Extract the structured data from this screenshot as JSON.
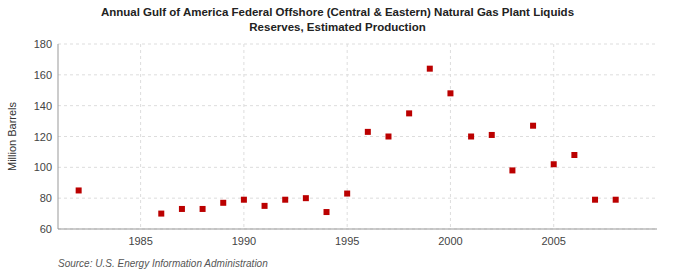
{
  "chart_data": {
    "type": "scatter",
    "title": "Annual Gulf of America Federal Offshore (Central & Eastern) Natural Gas Plant Liquids\nReserves, Estimated Production",
    "y_label": "Million Barrels",
    "source": "Source: U.S. Energy Information Administration",
    "x": [
      1982,
      1986,
      1987,
      1988,
      1989,
      1990,
      1991,
      1992,
      1993,
      1994,
      1995,
      1996,
      1997,
      1998,
      1999,
      2000,
      2001,
      2002,
      2003,
      2004,
      2005,
      2006,
      2007,
      2008
    ],
    "values": [
      85,
      70,
      73,
      73,
      77,
      79,
      75,
      79,
      80,
      71,
      83,
      123,
      120,
      135,
      164,
      148,
      120,
      121,
      98,
      127,
      102,
      108,
      79,
      79
    ],
    "color": "#bb0000",
    "marker": "square",
    "xlim": [
      1981,
      2010
    ],
    "xticks": [
      1985,
      1990,
      1995,
      2000,
      2005
    ],
    "ylim": [
      60,
      180
    ],
    "yticks": [
      60,
      80,
      100,
      120,
      140,
      160,
      180
    ],
    "grid": true
  }
}
